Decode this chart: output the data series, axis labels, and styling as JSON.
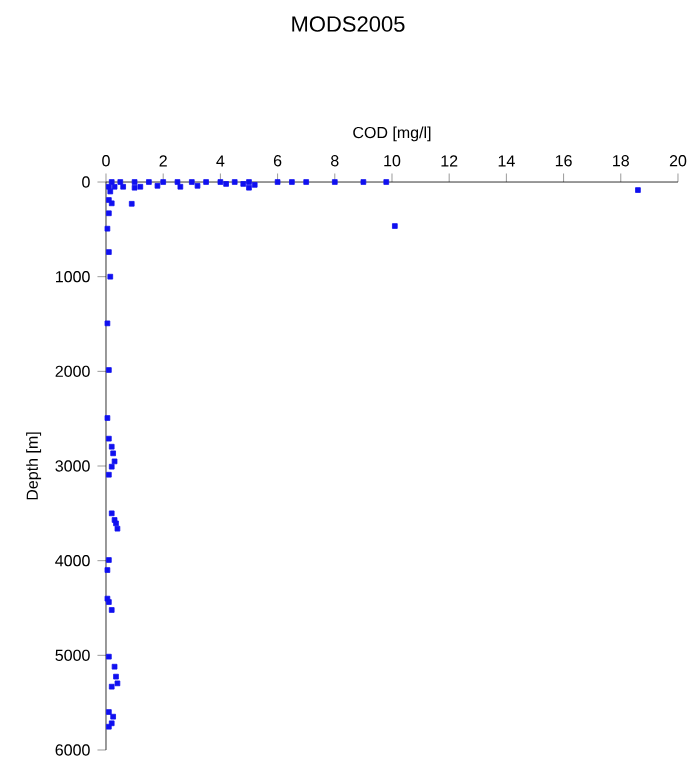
{
  "chart_data": {
    "type": "scatter",
    "title": "MODS2005",
    "xlabel": "COD [mg/l]",
    "ylabel": "Depth [m]",
    "color": "#1010f0",
    "marker": "square",
    "x": [
      0.2,
      0.5,
      1,
      1.5,
      2,
      2.5,
      3,
      3.5,
      4,
      4.5,
      4.8,
      5,
      5.2,
      6,
      6.5,
      7,
      8,
      9,
      9.8,
      0.1,
      0.3,
      0.6,
      1,
      1.2,
      1.8,
      2.6,
      3.2,
      4.2,
      5,
      18.6,
      10.1,
      0.9,
      0.1,
      0.2,
      0.1,
      0.05,
      0.1,
      0.15,
      0.05,
      0.1,
      0.05,
      0.1,
      0.2,
      0.25,
      0.3,
      0.2,
      0.1,
      0.2,
      0.3,
      0.35,
      0.4,
      0.1,
      0.05,
      0.05,
      0.1,
      0.2,
      0.1,
      0.3,
      0.35,
      0.4,
      0.2,
      0.1,
      0.25,
      0.2,
      0.1,
      0.15
    ],
    "values": [
      0,
      0,
      0,
      0,
      0,
      0,
      0,
      0,
      0,
      0,
      20,
      0,
      30,
      0,
      0,
      0,
      0,
      0,
      0,
      50,
      50,
      50,
      60,
      50,
      40,
      50,
      40,
      20,
      60,
      85,
      465,
      230,
      190,
      225,
      330,
      493,
      740,
      1000,
      1493,
      1986,
      2493,
      2711,
      2796,
      2866,
      2951,
      3007,
      3092,
      3500,
      3570,
      3606,
      3662,
      3993,
      4099,
      4401,
      4437,
      4521,
      5014,
      5120,
      5225,
      5296,
      5331,
      5599,
      5648,
      5718,
      5754,
      100
    ],
    "xlim": [
      0,
      20
    ],
    "xticks": [
      0,
      2,
      4,
      6,
      8,
      10,
      12,
      14,
      16,
      18,
      20
    ],
    "ylim": [
      6000,
      0
    ],
    "yticks": [
      0,
      1000,
      2000,
      3000,
      4000,
      5000,
      6000
    ]
  }
}
